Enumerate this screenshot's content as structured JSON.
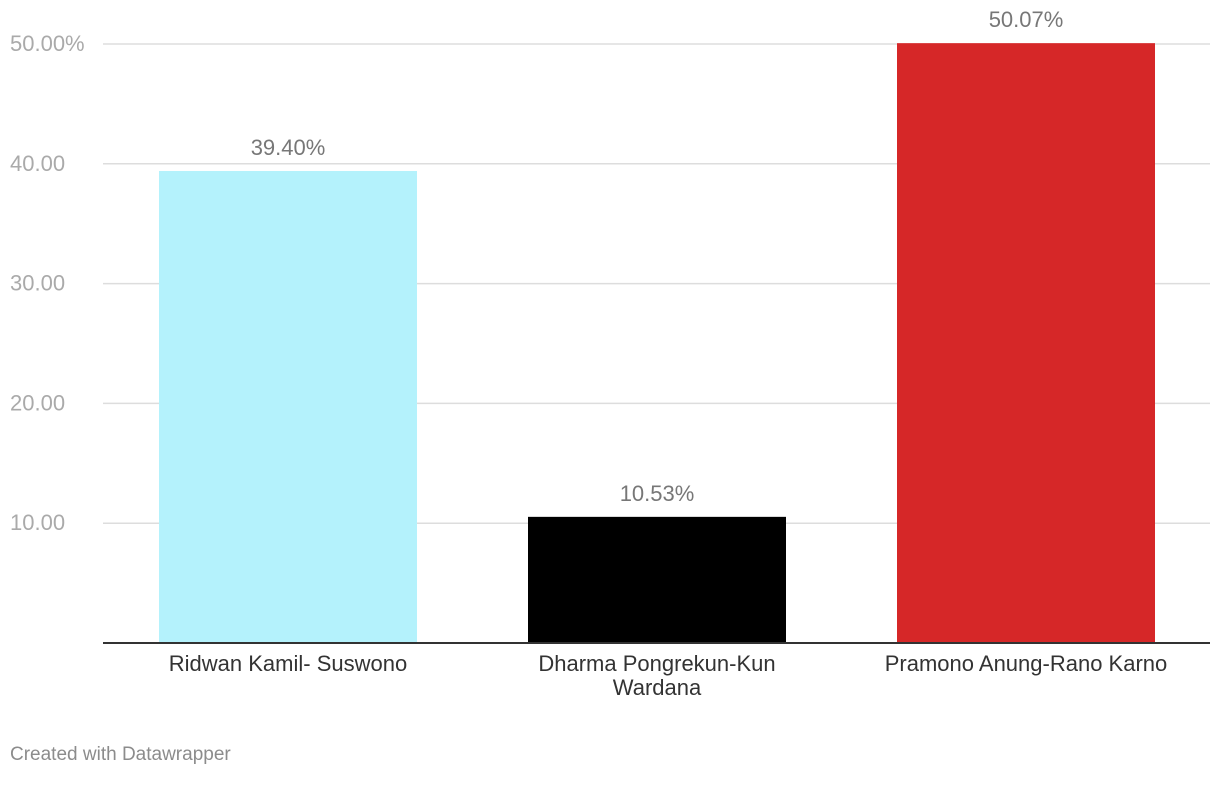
{
  "chart_data": {
    "type": "bar",
    "title": "",
    "xlabel": "",
    "ylabel": "",
    "categories": [
      "Ridwan Kamil- Suswono",
      "Dharma Pongrekun-Kun Wardana",
      "Pramono Anung-Rano Karno"
    ],
    "values": [
      39.4,
      10.53,
      50.07
    ],
    "value_labels": [
      "39.40%",
      "10.53%",
      "50.07%"
    ],
    "colors": [
      "#b4f2fc",
      "#000000",
      "#d62728"
    ],
    "ylim": [
      0,
      53.5
    ],
    "y_ticks": [
      10,
      20,
      30,
      40,
      50
    ],
    "y_tick_labels": [
      "10.00",
      "20.00",
      "30.00",
      "40.00",
      "50.00%"
    ],
    "grid": true,
    "legend": "none"
  },
  "footer": {
    "credit": "Created with Datawrapper"
  },
  "colors": {
    "gridline": "#dddddd",
    "baseline": "#333333",
    "tick_text": "#aaaaaa",
    "value_text": "#777777",
    "category_text": "#333333"
  }
}
